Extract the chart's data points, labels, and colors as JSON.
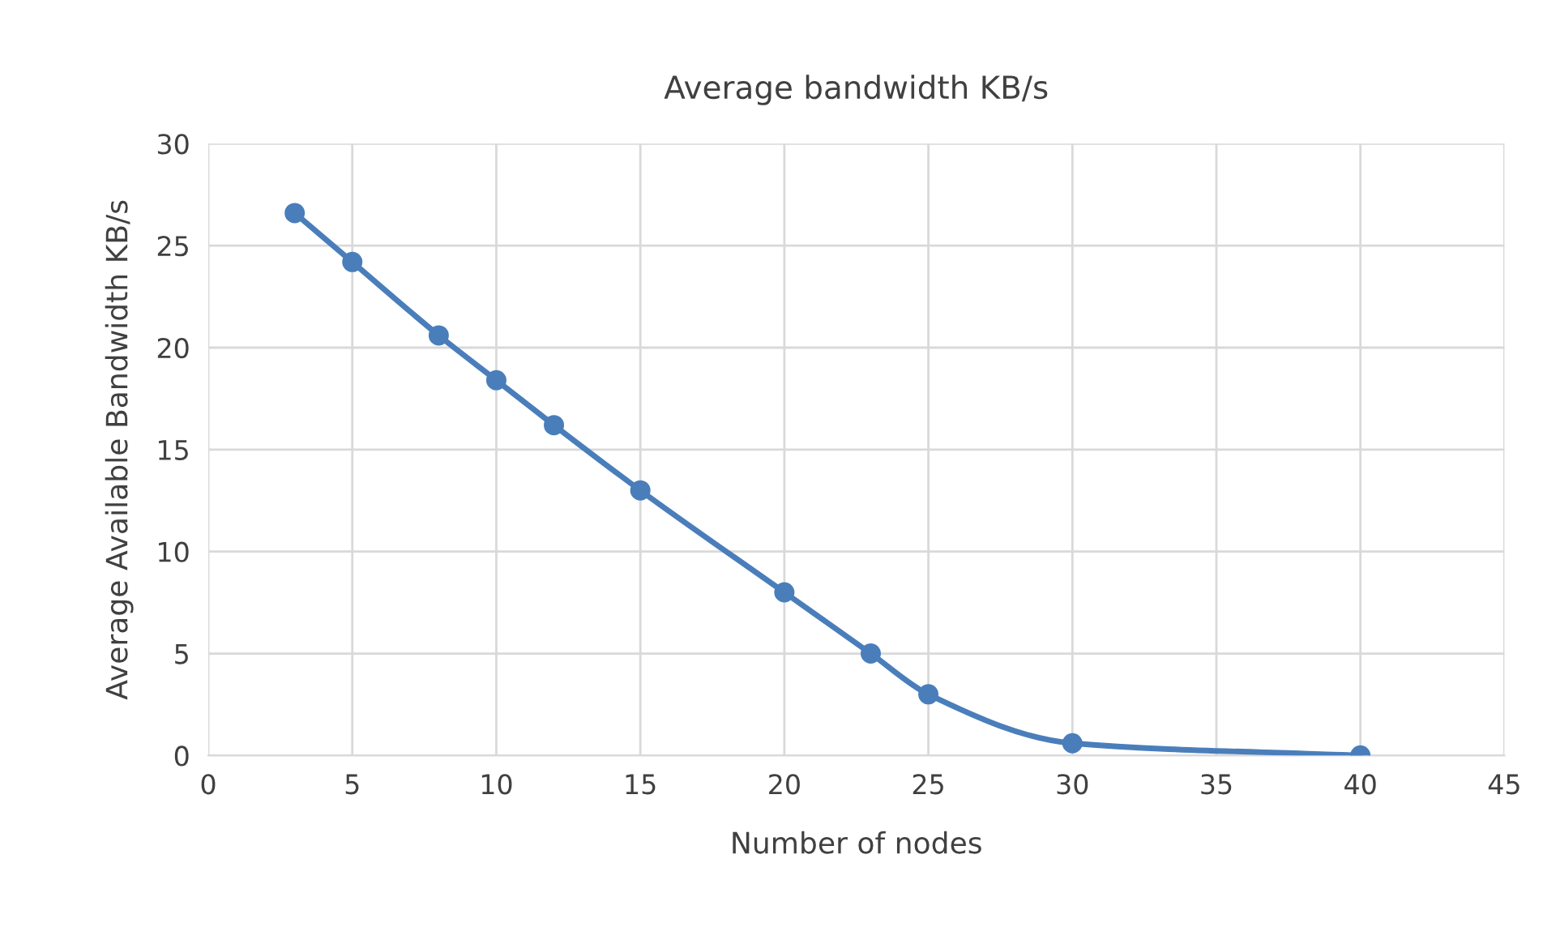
{
  "chart_data": {
    "type": "line",
    "title": "Average bandwidth KB/s",
    "xlabel": "Number of nodes",
    "ylabel": "Average Available Bandwidth KB/s",
    "x": [
      3,
      5,
      8,
      10,
      12,
      15,
      20,
      23,
      25,
      30,
      40
    ],
    "series": [
      {
        "color": "#4a7ebb",
        "values": [
          26.6,
          24.2,
          20.6,
          18.4,
          16.2,
          13.0,
          8.0,
          5.0,
          3.0,
          0.6,
          0.0
        ]
      }
    ],
    "xlim": [
      0,
      45
    ],
    "xticks": [
      0,
      5,
      10,
      15,
      20,
      25,
      30,
      35,
      40,
      45
    ],
    "ylim": [
      0,
      30
    ],
    "yticks": [
      0,
      5,
      10,
      15,
      20,
      25,
      30
    ],
    "grid": true,
    "marker": "circle",
    "line_style": "solid"
  }
}
